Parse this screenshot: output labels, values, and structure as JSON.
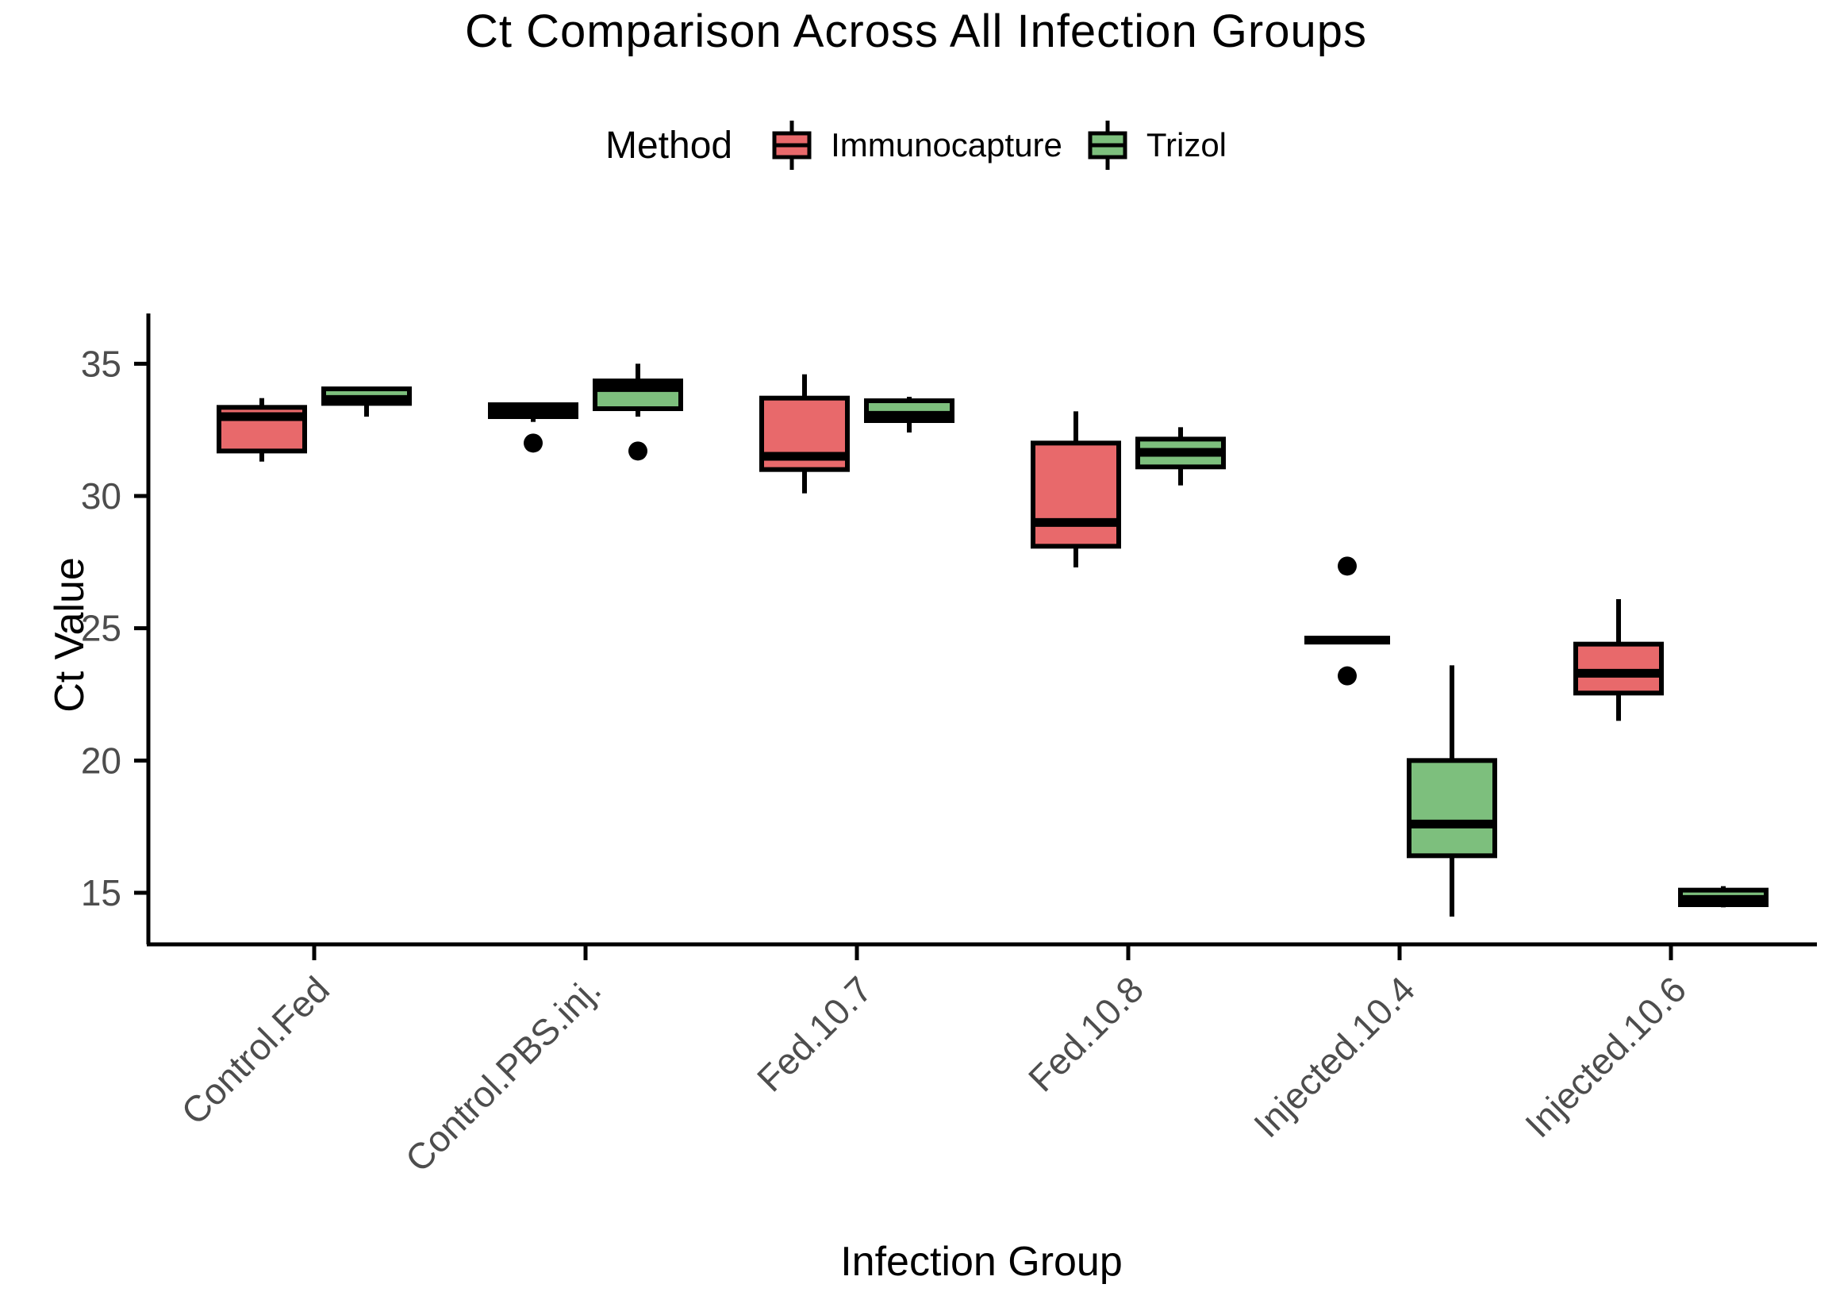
{
  "title": "Ct Comparison Across All Infection Groups",
  "legend": {
    "title": "Method",
    "items": [
      {
        "label": "Immunocapture",
        "color": "#E8696B"
      },
      {
        "label": "Trizol",
        "color": "#7DBF7D"
      }
    ]
  },
  "axes": {
    "xlabel": "Infection Group",
    "ylabel": "Ct Value"
  },
  "chart_data": {
    "type": "boxplot",
    "title": "Ct Comparison Across All Infection Groups",
    "xlabel": "Infection Group",
    "ylabel": "Ct Value",
    "ylim": [
      13.05,
      36.9
    ],
    "yticks": [
      15,
      20,
      25,
      30,
      35
    ],
    "grid": false,
    "legend_position": "top",
    "categories": [
      "Control.Fed",
      "Control.PBS.inj.",
      "Fed.10.7",
      "Fed.10.8",
      "Injected.10.4",
      "Injected.10.6"
    ],
    "series": [
      {
        "name": "Immunocapture",
        "color": "#E8696B",
        "boxes": [
          {
            "min": 31.3,
            "q1": 31.7,
            "median": 33.0,
            "q3": 33.35,
            "max": 33.7,
            "outliers": []
          },
          {
            "min": 32.8,
            "q1": 33.0,
            "median": 33.2,
            "q3": 33.45,
            "max": 33.45,
            "outliers": [
              32.0
            ]
          },
          {
            "min": 30.1,
            "q1": 31.0,
            "median": 31.5,
            "q3": 33.7,
            "max": 34.6,
            "outliers": []
          },
          {
            "min": 27.3,
            "q1": 28.1,
            "median": 29.0,
            "q3": 32.0,
            "max": 33.2,
            "outliers": []
          },
          {
            "min": 24.55,
            "q1": 24.55,
            "median": 24.55,
            "q3": 24.55,
            "max": 24.55,
            "outliers": [
              27.35,
              23.2
            ]
          },
          {
            "min": 21.5,
            "q1": 22.55,
            "median": 23.3,
            "q3": 24.4,
            "max": 26.1,
            "outliers": []
          }
        ]
      },
      {
        "name": "Trizol",
        "color": "#7DBF7D",
        "boxes": [
          {
            "min": 33.0,
            "q1": 33.5,
            "median": 33.65,
            "q3": 34.05,
            "max": 34.1,
            "outliers": []
          },
          {
            "min": 33.0,
            "q1": 33.3,
            "median": 34.1,
            "q3": 34.35,
            "max": 35.0,
            "outliers": [
              31.7
            ]
          },
          {
            "min": 32.4,
            "q1": 32.85,
            "median": 33.05,
            "q3": 33.6,
            "max": 33.75,
            "outliers": []
          },
          {
            "min": 30.4,
            "q1": 31.1,
            "median": 31.65,
            "q3": 32.15,
            "max": 32.6,
            "outliers": []
          },
          {
            "min": 14.1,
            "q1": 16.4,
            "median": 17.6,
            "q3": 20.0,
            "max": 23.6,
            "outliers": []
          },
          {
            "min": 14.45,
            "q1": 14.55,
            "median": 14.75,
            "q3": 15.1,
            "max": 15.25,
            "outliers": []
          }
        ]
      }
    ]
  }
}
